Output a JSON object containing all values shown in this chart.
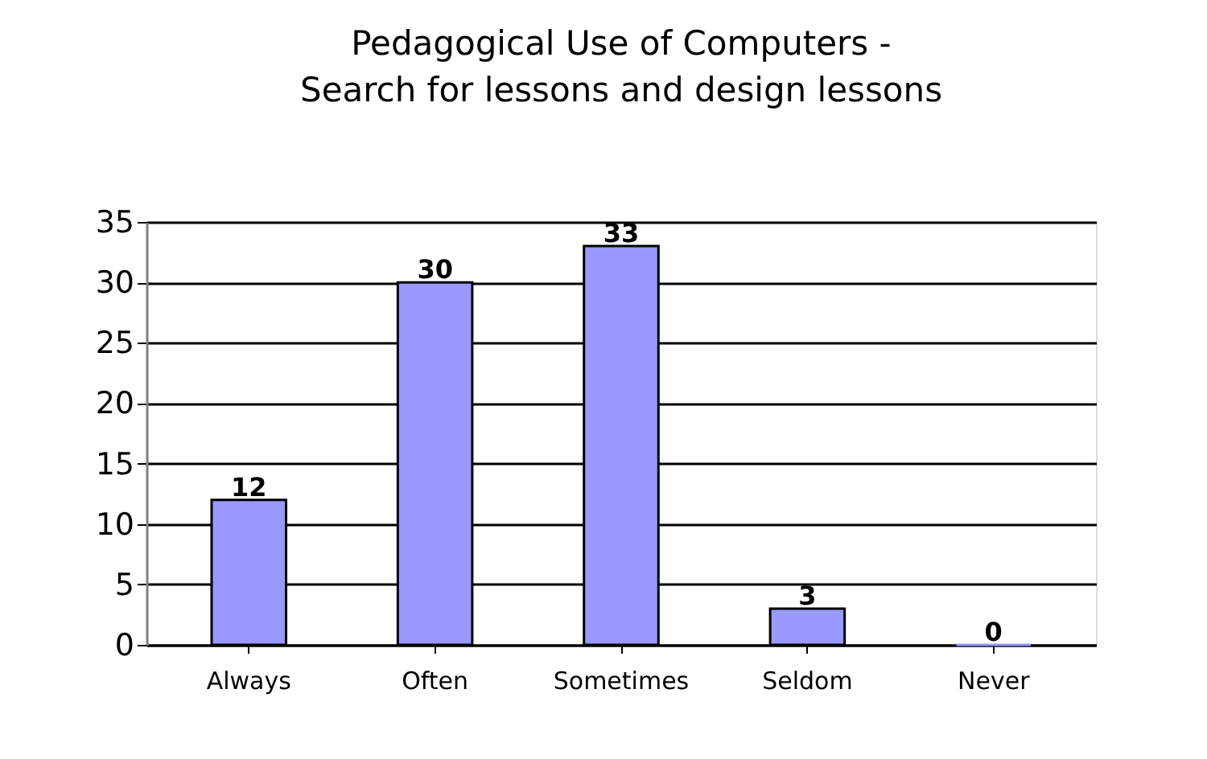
{
  "chart_data": {
    "type": "bar",
    "title": "Pedagogical Use of Computers -\nSearch for lessons and design lessons",
    "categories": [
      "Always",
      "Often",
      "Sometimes",
      "Seldom",
      "Never"
    ],
    "values": [
      12,
      30,
      33,
      3,
      0
    ],
    "color": "#9999ff",
    "ylim": [
      0,
      35
    ],
    "yticks": [
      0,
      5,
      10,
      15,
      20,
      25,
      30,
      35
    ],
    "grid": "y",
    "data_labels": true
  }
}
